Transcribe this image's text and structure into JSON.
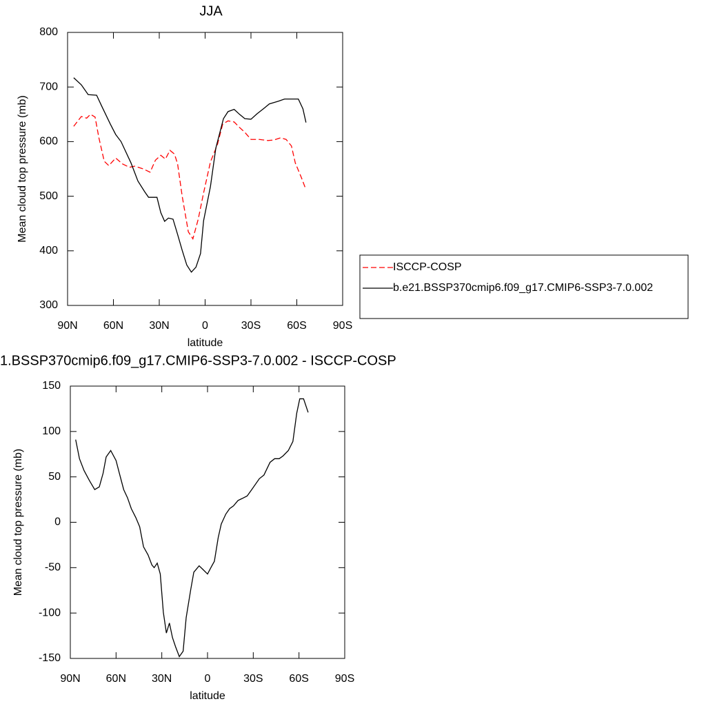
{
  "chart_data": [
    {
      "type": "line",
      "title": "JJA",
      "x_label": "latitude",
      "y_label": "Mean cloud top pressure (mb)",
      "xlim": [
        90,
        -90
      ],
      "ylim": [
        300,
        800
      ],
      "xticks": [
        {
          "value": 90,
          "label": "90N"
        },
        {
          "value": 60,
          "label": "60N"
        },
        {
          "value": 30,
          "label": "30N"
        },
        0,
        {
          "value": -30,
          "label": "30S"
        },
        {
          "value": -60,
          "label": "60S"
        },
        {
          "value": -90,
          "label": "90S"
        }
      ],
      "yticks": [
        300,
        400,
        500,
        600,
        700,
        800
      ],
      "legend": "right",
      "series": [
        {
          "name": "ISCCP-COSP",
          "color": "#ff0000",
          "style": "dashed",
          "x": [
            86,
            81,
            77.5,
            75,
            72,
            69.5,
            66,
            63,
            58.5,
            54,
            49.5,
            46,
            40.5,
            36,
            32.5,
            29,
            26,
            23,
            20,
            18,
            15,
            11,
            8,
            4.5,
            1,
            -3.5,
            -8,
            -11.5,
            -15,
            -19,
            -22.5,
            -26,
            -30,
            -35.5,
            -41,
            -45,
            -49.5,
            -53,
            -56.5,
            -59,
            -63,
            -66
          ],
          "values": [
            628,
            646,
            643,
            650,
            645,
            607,
            564,
            556,
            570,
            559,
            553,
            555,
            550,
            544,
            566,
            575,
            568,
            584,
            577,
            559,
            500,
            435,
            422,
            458,
            506,
            563,
            594,
            632,
            638,
            636,
            626,
            617,
            604,
            604,
            602,
            603,
            607,
            604,
            592,
            561,
            534,
            512
          ]
        },
        {
          "name": "b.e21.BSSP370cmip6.f09_g17.CMIP6-SSP3-7.0.002",
          "color": "#000000",
          "style": "solid",
          "x": [
            86,
            81,
            76.5,
            71,
            67.5,
            62,
            58.5,
            55,
            48.5,
            44,
            39.5,
            37,
            31.5,
            29,
            26.5,
            24,
            21,
            18,
            15,
            12,
            9,
            6,
            3,
            1,
            -3.5,
            -7,
            -12,
            -15,
            -19,
            -22.5,
            -26,
            -30,
            -34,
            -39,
            -42,
            -48,
            -52,
            -58,
            -61,
            -64,
            -66
          ],
          "values": [
            717,
            704,
            686,
            685,
            664,
            632,
            613,
            600,
            561,
            528,
            508,
            498,
            498,
            470,
            454,
            460,
            458,
            430,
            401,
            374,
            361,
            370,
            395,
            455,
            518,
            588,
            642,
            655,
            659,
            650,
            642,
            641,
            651,
            662,
            669,
            674,
            678,
            678,
            678,
            660,
            635
          ]
        }
      ]
    },
    {
      "type": "line",
      "title": "1.BSSP370cmip6.f09_g17.CMIP6-SSP3-7.0.002 - ISCCP-COSP",
      "x_label": "latitude",
      "y_label": "Mean cloud top pressure (mb)",
      "xlim": [
        90,
        -90
      ],
      "ylim": [
        -150,
        150
      ],
      "xticks": [
        {
          "value": 90,
          "label": "90N"
        },
        {
          "value": 60,
          "label": "60N"
        },
        {
          "value": 30,
          "label": "30N"
        },
        0,
        {
          "value": -30,
          "label": "30S"
        },
        {
          "value": -60,
          "label": "60S"
        },
        {
          "value": -90,
          "label": "90S"
        }
      ],
      "yticks": [
        -150,
        -100,
        -50,
        0,
        50,
        100,
        150
      ],
      "series": [
        {
          "color": "#000000",
          "style": "solid",
          "x": [
            86.5,
            84,
            81,
            77.5,
            74,
            71,
            68.5,
            66.5,
            63.5,
            60,
            58,
            55,
            52.5,
            50,
            47,
            44.5,
            42,
            39,
            36.5,
            35,
            33,
            31,
            29,
            27,
            25,
            23,
            21,
            18.5,
            16,
            14,
            11,
            9,
            5.5,
            3,
            0,
            -2.5,
            -4.5,
            -7,
            -9,
            -12,
            -14.5,
            -17,
            -20,
            -22.5,
            -26,
            -29,
            -34,
            -37,
            -41,
            -44,
            -47,
            -49.5,
            -53,
            -56,
            -58.5,
            -60.5,
            -63,
            -66
          ],
          "values": [
            91,
            70,
            57,
            46,
            36,
            39,
            54,
            72,
            79,
            68,
            55,
            36,
            27,
            15,
            5,
            -5,
            -27,
            -36,
            -47,
            -50,
            -45,
            -57,
            -99,
            -122,
            -111,
            -127,
            -137,
            -148,
            -142,
            -105,
            -74,
            -55,
            -48,
            -52,
            -57,
            -49,
            -43,
            -17,
            -2,
            9,
            15,
            18,
            24,
            26,
            29,
            36,
            48,
            52,
            66,
            70,
            70,
            73,
            79,
            89,
            120,
            136,
            136,
            121
          ]
        }
      ]
    }
  ]
}
